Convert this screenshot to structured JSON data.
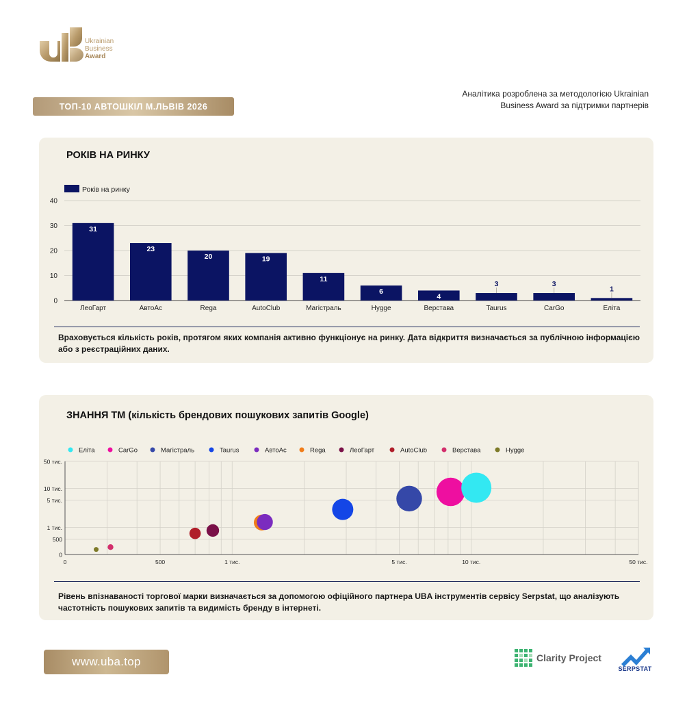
{
  "header": {
    "logo_lines": [
      "Ukrainian",
      "Business",
      "Award"
    ],
    "title": "ТОП-10 АВТОШКІЛ М.ЛЬВІВ 2026",
    "analytics_note": "Аналітика розроблена за методологією Ukrainian Business Award за підтримки партнерів"
  },
  "colors": {
    "bar": "#0b1463",
    "gold": "#b89a6a",
    "card_bg": "#f3f0e6"
  },
  "years_card": {
    "title": "РОКІВ НА РИНКУ",
    "description": "Враховується кількість років, протягом яких компанія активно функціонує на ринку. Дата відкриття визначається за публічною інформацією або з реєстраційних даних."
  },
  "brand_card": {
    "title": "ЗНАННЯ ТМ (кількість брендових пошукових запитів Google)",
    "description": "Рівень впізнаваності торгової марки визначається за допомогою офіційного партнера UBA інструментів сервісу Serpstat, що аналізують частотність пошукових запитів та видимість бренду в інтернеті."
  },
  "chart_data": [
    {
      "type": "bar",
      "legend": "Років на ринку",
      "legend_position": "top-left",
      "categories": [
        "ЛеоГарт",
        "АвтоАс",
        "Rega",
        "AutoClub",
        "Магістраль",
        "Hygge",
        "Верстава",
        "Taurus",
        "CarGo",
        "Еліта"
      ],
      "values": [
        31,
        23,
        20,
        19,
        11,
        6,
        4,
        3,
        3,
        1
      ],
      "ylim": [
        0,
        40
      ],
      "yticks": [
        0,
        10,
        20,
        30,
        40
      ],
      "grid": true
    },
    {
      "type": "scatter",
      "legend_position": "top",
      "x_scale": "log",
      "y_scale": "log",
      "x_ticks": [
        {
          "v": 500,
          "label": "500"
        },
        {
          "v": 1000,
          "label": "1 тис."
        },
        {
          "v": 5000,
          "label": "5 тис."
        },
        {
          "v": 10000,
          "label": "10 тис."
        },
        {
          "v": 50000,
          "label": "50 тис."
        }
      ],
      "x_zero_label": "0",
      "y_ticks": [
        {
          "v": 500,
          "label": "500"
        },
        {
          "v": 1000,
          "label": "1 тис."
        },
        {
          "v": 5000,
          "label": "5 тис."
        },
        {
          "v": 10000,
          "label": "10 тис."
        },
        {
          "v": 50000,
          "label": "50 тис."
        }
      ],
      "y_zero_label": "0",
      "series": [
        {
          "name": "Еліта",
          "color": "#33e8f2",
          "x": 10500,
          "y": 10500
        },
        {
          "name": "CarGo",
          "color": "#ee0fa0",
          "x": 8200,
          "y": 8200
        },
        {
          "name": "Магістраль",
          "color": "#3548a8",
          "x": 5500,
          "y": 5500
        },
        {
          "name": "Taurus",
          "color": "#1446e6",
          "x": 2900,
          "y": 2900
        },
        {
          "name": "АвтоАс",
          "color": "#7b2cbf",
          "x": 1370,
          "y": 1370
        },
        {
          "name": "Rega",
          "color": "#f07d1a",
          "x": 1330,
          "y": 1330
        },
        {
          "name": "ЛеоГарт",
          "color": "#7a1048",
          "x": 830,
          "y": 830
        },
        {
          "name": "AutoClub",
          "color": "#b01e2a",
          "x": 700,
          "y": 700
        },
        {
          "name": "Верстава",
          "color": "#d32f6c",
          "x": 310,
          "y": 310
        },
        {
          "name": "Hygge",
          "color": "#7d7a28",
          "x": 270,
          "y": 270
        }
      ]
    }
  ],
  "footer": {
    "site": "www.uba.top",
    "clarity_label": "Clarity Project",
    "serpstat_label": "SERPSTAT"
  }
}
